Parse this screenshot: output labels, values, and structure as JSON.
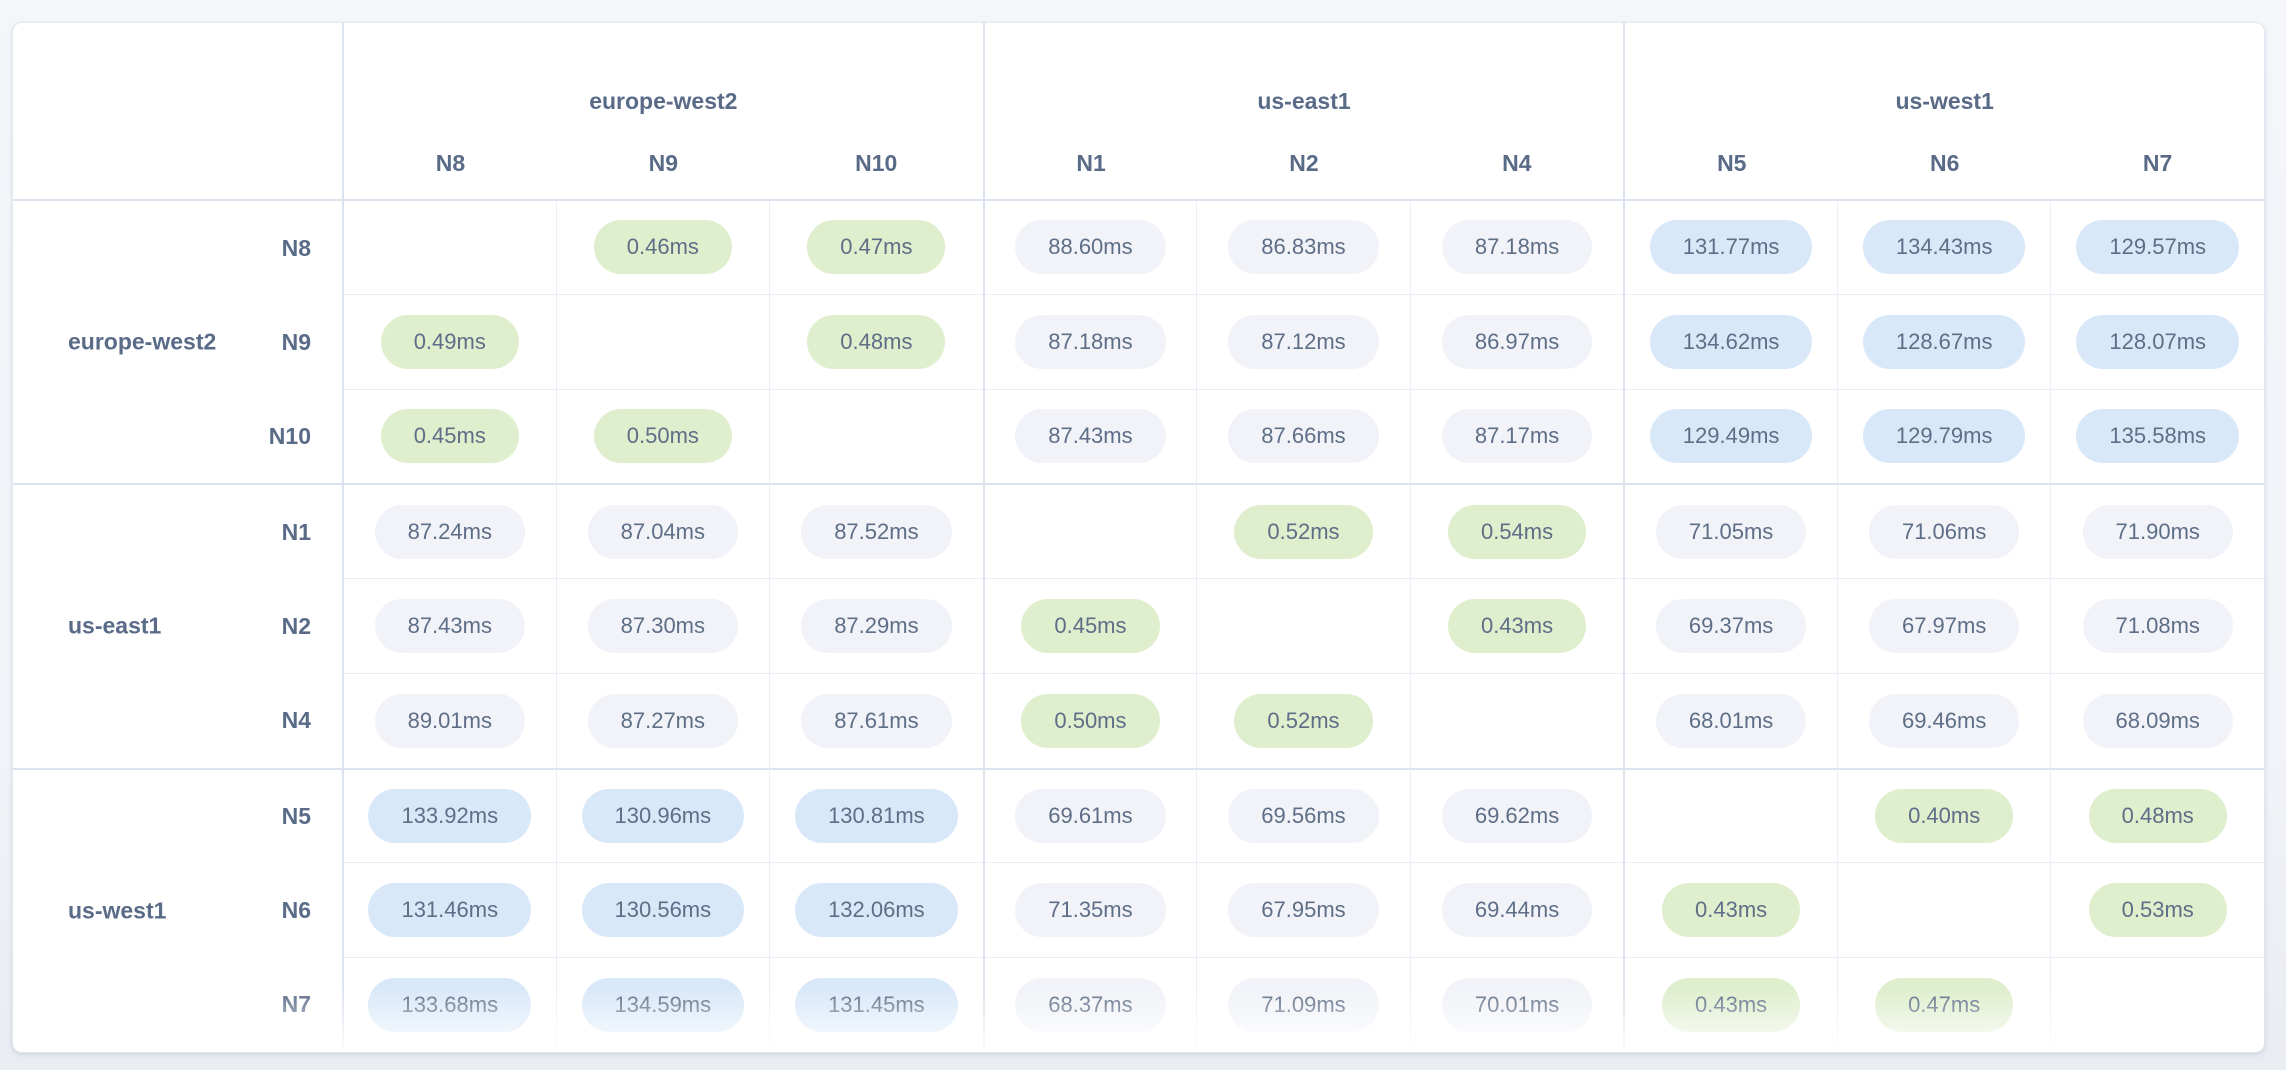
{
  "matrix": {
    "unit": "ms",
    "column_groups": [
      {
        "region": "europe-west2",
        "nodes": [
          "N8",
          "N9",
          "N10"
        ]
      },
      {
        "region": "us-east1",
        "nodes": [
          "N1",
          "N2",
          "N4"
        ]
      },
      {
        "region": "us-west1",
        "nodes": [
          "N5",
          "N6",
          "N7"
        ]
      }
    ],
    "row_groups": [
      {
        "region": "europe-west2",
        "rows": [
          {
            "node": "N8",
            "cells": [
              null,
              "0.46ms",
              "0.47ms",
              "88.60ms",
              "86.83ms",
              "87.18ms",
              "131.77ms",
              "134.43ms",
              "129.57ms"
            ]
          },
          {
            "node": "N9",
            "cells": [
              "0.49ms",
              null,
              "0.48ms",
              "87.18ms",
              "87.12ms",
              "86.97ms",
              "134.62ms",
              "128.67ms",
              "128.07ms"
            ]
          },
          {
            "node": "N10",
            "cells": [
              "0.45ms",
              "0.50ms",
              null,
              "87.43ms",
              "87.66ms",
              "87.17ms",
              "129.49ms",
              "129.79ms",
              "135.58ms"
            ]
          }
        ]
      },
      {
        "region": "us-east1",
        "rows": [
          {
            "node": "N1",
            "cells": [
              "87.24ms",
              "87.04ms",
              "87.52ms",
              null,
              "0.52ms",
              "0.54ms",
              "71.05ms",
              "71.06ms",
              "71.90ms"
            ]
          },
          {
            "node": "N2",
            "cells": [
              "87.43ms",
              "87.30ms",
              "87.29ms",
              "0.45ms",
              null,
              "0.43ms",
              "69.37ms",
              "67.97ms",
              "71.08ms"
            ]
          },
          {
            "node": "N4",
            "cells": [
              "89.01ms",
              "87.27ms",
              "87.61ms",
              "0.50ms",
              "0.52ms",
              null,
              "68.01ms",
              "69.46ms",
              "68.09ms"
            ]
          }
        ]
      },
      {
        "region": "us-west1",
        "rows": [
          {
            "node": "N5",
            "cells": [
              "133.92ms",
              "130.96ms",
              "130.81ms",
              "69.61ms",
              "69.56ms",
              "69.62ms",
              null,
              "0.40ms",
              "0.48ms"
            ]
          },
          {
            "node": "N6",
            "cells": [
              "131.46ms",
              "130.56ms",
              "132.06ms",
              "71.35ms",
              "67.95ms",
              "69.44ms",
              "0.43ms",
              null,
              "0.53ms"
            ]
          },
          {
            "node": "N7",
            "cells": [
              "133.68ms",
              "134.59ms",
              "131.45ms",
              "68.37ms",
              "71.09ms",
              "70.01ms",
              "0.43ms",
              "0.47ms",
              null
            ]
          }
        ]
      }
    ],
    "colors": {
      "intra_region_pill": "#dfeecd",
      "inter_region_near_pill": "#f1f3f8",
      "inter_region_far_pill": "#d9e8f9",
      "pill_text": "#5e6e87",
      "header_text": "#5a6b88"
    }
  },
  "chart_data": {
    "type": "heatmap",
    "unit": "ms",
    "columns": [
      "N8",
      "N9",
      "N10",
      "N1",
      "N2",
      "N4",
      "N5",
      "N6",
      "N7"
    ],
    "column_regions": [
      "europe-west2",
      "europe-west2",
      "europe-west2",
      "us-east1",
      "us-east1",
      "us-east1",
      "us-west1",
      "us-west1",
      "us-west1"
    ],
    "rows": [
      "N8",
      "N9",
      "N10",
      "N1",
      "N2",
      "N4",
      "N5",
      "N6",
      "N7"
    ],
    "row_regions": [
      "europe-west2",
      "europe-west2",
      "europe-west2",
      "us-east1",
      "us-east1",
      "us-east1",
      "us-west1",
      "us-west1",
      "us-west1"
    ],
    "values_ms": [
      [
        null,
        0.46,
        0.47,
        88.6,
        86.83,
        87.18,
        131.77,
        134.43,
        129.57
      ],
      [
        0.49,
        null,
        0.48,
        87.18,
        87.12,
        86.97,
        134.62,
        128.67,
        128.07
      ],
      [
        0.45,
        0.5,
        null,
        87.43,
        87.66,
        87.17,
        129.49,
        129.79,
        135.58
      ],
      [
        87.24,
        87.04,
        87.52,
        null,
        0.52,
        0.54,
        71.05,
        71.06,
        71.9
      ],
      [
        87.43,
        87.3,
        87.29,
        0.45,
        null,
        0.43,
        69.37,
        67.97,
        71.08
      ],
      [
        89.01,
        87.27,
        87.61,
        0.5,
        0.52,
        null,
        68.01,
        69.46,
        68.09
      ],
      [
        133.92,
        130.96,
        130.81,
        69.61,
        69.56,
        69.62,
        null,
        0.4,
        0.48
      ],
      [
        131.46,
        130.56,
        132.06,
        71.35,
        67.95,
        69.44,
        0.43,
        null,
        0.53
      ],
      [
        133.68,
        134.59,
        131.45,
        68.37,
        71.09,
        70.01,
        0.43,
        0.47,
        null
      ]
    ],
    "color_encoding": {
      "under_1ms": "green",
      "1_to_100ms": "gray",
      "over_100ms": "blue"
    },
    "legend_position": "none",
    "grid": true
  }
}
